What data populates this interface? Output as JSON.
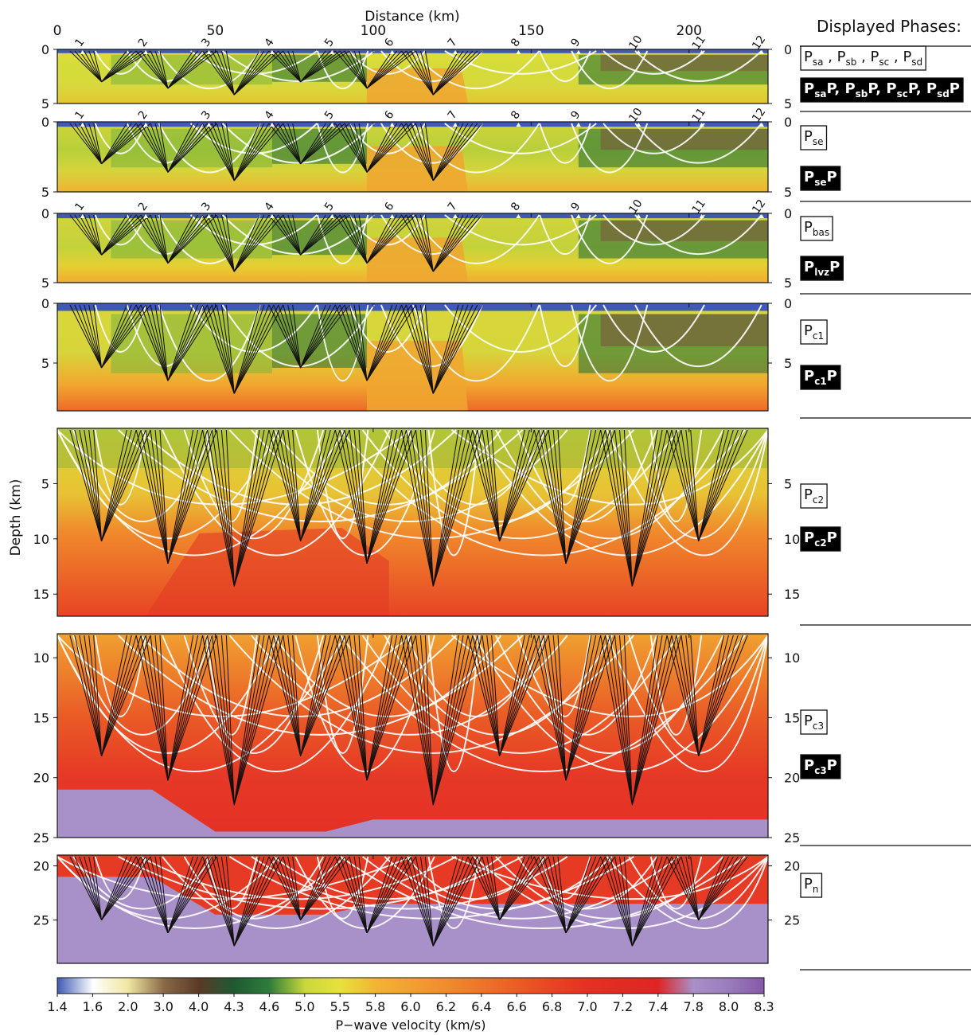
{
  "figure": {
    "x_axis_label": "Distance (km)",
    "y_axis_label": "Depth (km)",
    "colorbar_label": "P−wave velocity (km/s)",
    "legend_title": "Displayed Phases:"
  },
  "chart_data": {
    "type": "heatmap",
    "x_ticks": [
      0,
      50,
      100,
      150,
      200
    ],
    "xlim": [
      0,
      225
    ],
    "stations": [
      "1",
      "2",
      "3",
      "4",
      "5",
      "6",
      "7",
      "8",
      "9",
      "10",
      "11",
      "12"
    ],
    "station_positions_km": [
      8,
      28,
      48,
      68,
      87,
      106,
      126,
      146,
      165,
      184,
      204,
      223
    ],
    "colorbar": {
      "ticks": [
        "1.4",
        "1.6",
        "2.0",
        "3.0",
        "4.0",
        "4.3",
        "4.6",
        "5.0",
        "5.5",
        "5.8",
        "6.0",
        "6.2",
        "6.4",
        "6.6",
        "6.8",
        "7.0",
        "7.2",
        "7.4",
        "7.8",
        "8.0",
        "8.3"
      ],
      "colors": [
        "#3e5ab4",
        "#ffffff",
        "#f0e6a0",
        "#8a6a48",
        "#5a3a26",
        "#1e5a32",
        "#2e7d3c",
        "#c8d83a",
        "#e8e23a",
        "#f2b432",
        "#f2a030",
        "#f08c2c",
        "#ee7428",
        "#ec5c26",
        "#e84424",
        "#e63024",
        "#e22a24",
        "#e02424",
        "#a890c8",
        "#9a7cbc",
        "#8458a8"
      ]
    },
    "panels": [
      {
        "name": "upper-sediments",
        "ylim": [
          0,
          5
        ],
        "y_ticks": [
          0,
          5
        ],
        "y_ticks_right": [
          0,
          5
        ],
        "phases": [
          {
            "labels": [
              {
                "b": "P",
                "s": "sa",
                "r": " , "
              },
              {
                "b": "P",
                "s": "sb",
                "r": " , "
              },
              {
                "b": "P",
                "s": "sc",
                "r": " , "
              },
              {
                "b": "P",
                "s": "sd",
                "r": ""
              }
            ],
            "style": "white"
          },
          {
            "labels": [
              {
                "b": "P",
                "s": "sa",
                "r": "P, "
              },
              {
                "b": "P",
                "s": "sb",
                "r": "P, "
              },
              {
                "b": "P",
                "s": "sc",
                "r": "P, "
              },
              {
                "b": "P",
                "s": "sd",
                "r": "P"
              }
            ],
            "style": "black"
          }
        ]
      },
      {
        "name": "se-layer",
        "ylim": [
          0,
          5
        ],
        "y_ticks": [
          0,
          5
        ],
        "y_ticks_right": [
          0,
          5
        ],
        "phases": [
          {
            "labels": [
              {
                "b": "P",
                "s": "se",
                "r": ""
              }
            ],
            "style": "white"
          },
          {
            "labels": [
              {
                "b": "P",
                "s": "se",
                "r": "P"
              }
            ],
            "style": "black"
          }
        ]
      },
      {
        "name": "basalt-layer",
        "ylim": [
          0,
          5
        ],
        "y_ticks": [
          0,
          5
        ],
        "y_ticks_right": [
          0,
          5
        ],
        "phases": [
          {
            "labels": [
              {
                "b": "P",
                "s": "bas",
                "r": ""
              }
            ],
            "style": "white"
          },
          {
            "labels": [
              {
                "b": "P",
                "s": "lvz",
                "r": "P"
              }
            ],
            "style": "black"
          }
        ]
      },
      {
        "name": "c1-layer",
        "ylim": [
          0,
          9
        ],
        "y_ticks": [
          0,
          5
        ],
        "y_ticks_right": [
          0,
          5
        ],
        "phases": [
          {
            "labels": [
              {
                "b": "P",
                "s": "c1",
                "r": ""
              }
            ],
            "style": "white"
          },
          {
            "labels": [
              {
                "b": "P",
                "s": "c1",
                "r": "P"
              }
            ],
            "style": "black"
          }
        ]
      },
      {
        "name": "c2-layer",
        "ylim": [
          0,
          17
        ],
        "y_ticks": [
          5,
          10,
          15
        ],
        "y_ticks_right": [
          5,
          10,
          15
        ],
        "phases": [
          {
            "labels": [
              {
                "b": "P",
                "s": "c2",
                "r": ""
              }
            ],
            "style": "white"
          },
          {
            "labels": [
              {
                "b": "P",
                "s": "c2",
                "r": "P"
              }
            ],
            "style": "black"
          }
        ]
      },
      {
        "name": "c3-layer",
        "ylim": [
          8,
          25
        ],
        "y_ticks": [
          10,
          15,
          20,
          25
        ],
        "y_ticks_right": [
          10,
          15,
          20,
          25
        ],
        "phases": [
          {
            "labels": [
              {
                "b": "P",
                "s": "c3",
                "r": ""
              }
            ],
            "style": "white"
          },
          {
            "labels": [
              {
                "b": "P",
                "s": "c3",
                "r": "P"
              }
            ],
            "style": "black"
          }
        ]
      },
      {
        "name": "mantle",
        "ylim": [
          19,
          29
        ],
        "y_ticks": [
          20,
          25
        ],
        "y_ticks_right": [
          20,
          25
        ],
        "phases": [
          {
            "labels": [
              {
                "b": "P",
                "s": "n",
                "r": ""
              }
            ],
            "style": "white"
          }
        ]
      }
    ]
  }
}
